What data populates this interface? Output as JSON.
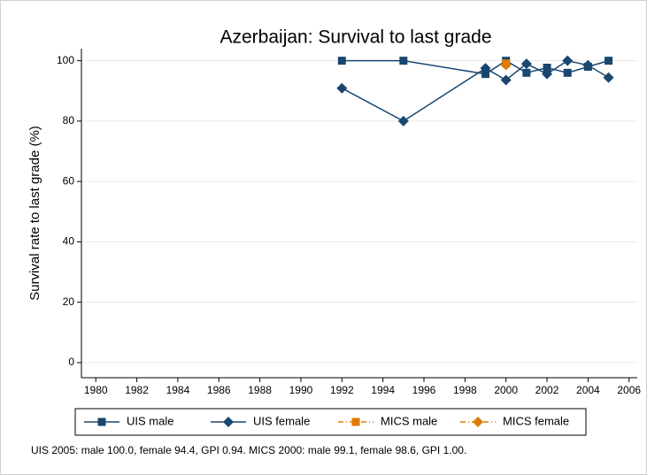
{
  "chart_data": {
    "type": "line",
    "title": "Azerbaijan: Survival to last grade",
    "y_label": "Survival rate to last grade (%)",
    "note": "UIS 2005: male 100.0, female 94.4, GPI 0.94. MICS 2000: male 99.1, female 98.6, GPI 1.00.",
    "series": [
      {
        "name": "UIS male",
        "color": "#1a476f",
        "marker": "square",
        "dash": false,
        "x": [
          1992,
          1995,
          1999,
          2000,
          2001,
          2002,
          2003,
          2004,
          2005
        ],
        "values": [
          100,
          100,
          95.6,
          100,
          96,
          97.7,
          96,
          98,
          100
        ]
      },
      {
        "name": "UIS female",
        "color": "#1a476f",
        "marker": "diamond",
        "dash": false,
        "x": [
          1992,
          1995,
          1999,
          2000,
          2001,
          2002,
          2003,
          2004,
          2005
        ],
        "values": [
          90.9,
          80,
          97.5,
          93.6,
          99,
          95.6,
          100,
          98.5,
          94.4
        ]
      },
      {
        "name": "MICS male",
        "color": "#e07b00",
        "marker": "square",
        "dash": true,
        "x": [
          2000
        ],
        "values": [
          99.1
        ]
      },
      {
        "name": "MICS female",
        "color": "#e07b00",
        "marker": "diamond",
        "dash": true,
        "x": [
          2000
        ],
        "values": [
          98.6
        ]
      }
    ],
    "xlim": [
      1979.3,
      2006.4
    ],
    "xticks": [
      1980,
      1982,
      1984,
      1986,
      1988,
      1990,
      1992,
      1994,
      1996,
      1998,
      2000,
      2002,
      2004,
      2006
    ],
    "ylim": [
      -5,
      104
    ],
    "yticks": [
      0,
      20,
      40,
      60,
      80,
      100
    ],
    "grid": true
  }
}
